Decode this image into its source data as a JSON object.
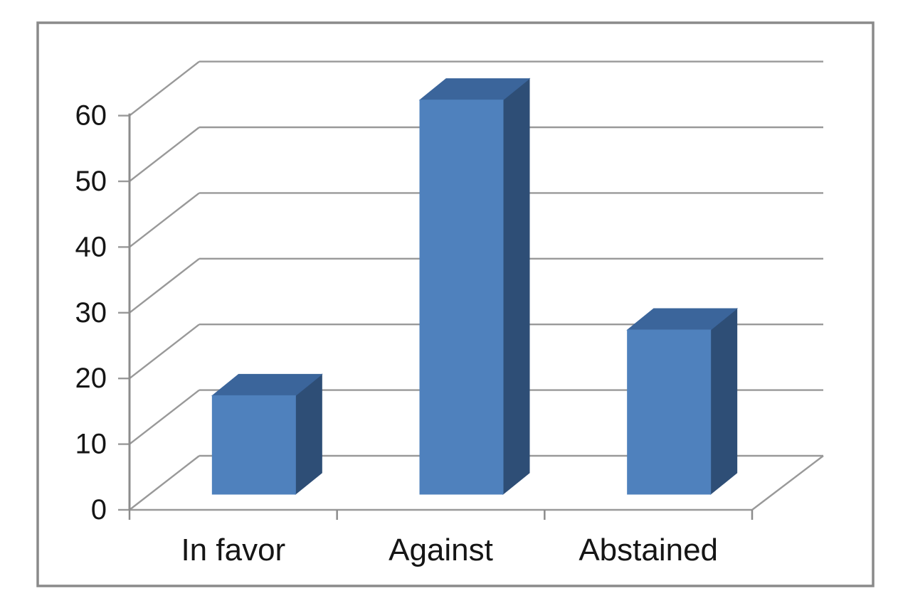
{
  "chart_data": {
    "type": "bar",
    "subtype": "3d-column",
    "title": "",
    "xlabel": "",
    "ylabel": "",
    "categories": [
      "In favor",
      "Against",
      "Abstained"
    ],
    "values": [
      15,
      60,
      25
    ],
    "yticks": [
      0,
      10,
      20,
      30,
      40,
      50,
      60
    ],
    "ylim": [
      0,
      60
    ],
    "grid": true,
    "legend": "none",
    "colors": {
      "bar_front": "#4f81bd",
      "bar_top": "#3b659b",
      "bar_side": "#2e4e76",
      "gridline": "#999999",
      "axis": "#8c8c8c",
      "frame_border": "#8a8a8a",
      "text": "#151515",
      "background": "#ffffff"
    }
  }
}
